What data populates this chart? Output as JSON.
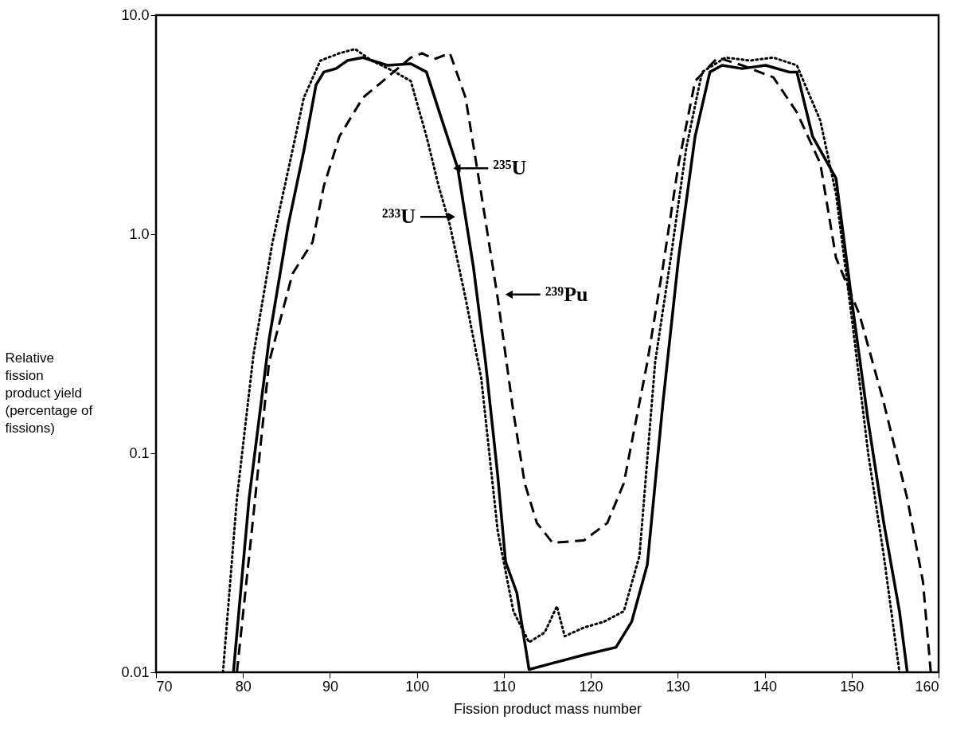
{
  "chart_data": {
    "type": "line",
    "xlabel": "Fission product mass number",
    "ylabel": "Relative fission product yield (percentage of fissions)",
    "xlim": [
      70,
      160
    ],
    "xticks": [
      70,
      80,
      90,
      100,
      110,
      120,
      130,
      140,
      150,
      160
    ],
    "ylim": [
      0.01,
      10
    ],
    "yticks": [
      {
        "value": 10,
        "label": "10.0"
      },
      {
        "value": 1,
        "label": "1.0"
      },
      0.1,
      0.01
    ],
    "log": true,
    "grid": false,
    "series": [
      {
        "color": "#000000",
        "line_style": "solid",
        "x": [
          78.9,
          80.7,
          83.0,
          85.2,
          87.0,
          88.4,
          89.3,
          90.7,
          92.0,
          93.8,
          96.6,
          99.3,
          101.1,
          102.9,
          104.7,
          106.5,
          107.9,
          109.3,
          110.2,
          111.5,
          112.9,
          115.6,
          119.2,
          122.9,
          124.7,
          126.5,
          128.3,
          130.1,
          132.0,
          133.7,
          135.1,
          137.4,
          140.1,
          142.8,
          143.7,
          145.5,
          148.2,
          150.1,
          151.9,
          153.7,
          155.5,
          156.4
        ],
        "values": [
          0.01,
          0.062,
          0.33,
          1.1,
          2.4,
          4.8,
          5.5,
          5.7,
          6.2,
          6.4,
          5.9,
          6.0,
          5.5,
          3.3,
          2.0,
          0.71,
          0.26,
          0.079,
          0.032,
          0.023,
          0.0103,
          0.011,
          0.012,
          0.013,
          0.017,
          0.031,
          0.17,
          0.78,
          2.8,
          5.5,
          5.9,
          5.7,
          5.9,
          5.5,
          5.5,
          2.8,
          1.8,
          0.47,
          0.14,
          0.048,
          0.019,
          0.01
        ]
      },
      {
        "color": "#000000",
        "line_style": "dotted",
        "x": [
          77.7,
          79.3,
          81.2,
          83.4,
          85.2,
          87.0,
          88.9,
          91.1,
          92.9,
          94.8,
          97.5,
          99.3,
          101.1,
          102.5,
          103.8,
          105.6,
          107.4,
          109.3,
          111.1,
          112.9,
          114.7,
          116.1,
          117.0,
          119.2,
          121.5,
          123.8,
          125.6,
          127.4,
          129.2,
          131.0,
          132.8,
          135.5,
          138.3,
          141.0,
          143.7,
          146.4,
          148.2,
          150.1,
          151.9,
          153.7,
          155.5
        ],
        "values": [
          0.01,
          0.062,
          0.28,
          0.92,
          1.96,
          4.2,
          6.2,
          6.7,
          7.0,
          6.2,
          5.5,
          5.0,
          2.8,
          1.66,
          1.1,
          0.51,
          0.22,
          0.044,
          0.019,
          0.0137,
          0.0152,
          0.02,
          0.0146,
          0.016,
          0.017,
          0.019,
          0.034,
          0.26,
          0.78,
          2.5,
          5.5,
          6.4,
          6.2,
          6.4,
          5.9,
          3.3,
          1.53,
          0.39,
          0.1,
          0.034,
          0.01
        ]
      },
      {
        "color": "#000000",
        "line_style": "dashed",
        "x": [
          79.3,
          81.2,
          83.0,
          85.7,
          88.0,
          89.3,
          91.1,
          93.8,
          96.6,
          99.3,
          100.6,
          102.0,
          103.8,
          105.6,
          107.4,
          109.3,
          111.1,
          112.4,
          113.8,
          115.6,
          119.2,
          121.9,
          123.8,
          126.5,
          128.3,
          130.1,
          132.0,
          134.6,
          137.4,
          141.0,
          143.7,
          146.4,
          148.2,
          150.9,
          153.7,
          156.4,
          158.2,
          159.1
        ],
        "values": [
          0.01,
          0.052,
          0.26,
          0.66,
          0.92,
          1.66,
          2.8,
          4.2,
          5.2,
          6.4,
          6.7,
          6.3,
          6.7,
          4.2,
          1.53,
          0.51,
          0.154,
          0.073,
          0.048,
          0.039,
          0.04,
          0.048,
          0.073,
          0.26,
          0.71,
          2.1,
          5.0,
          6.4,
          5.9,
          5.2,
          3.6,
          2.1,
          0.78,
          0.43,
          0.17,
          0.062,
          0.026,
          0.01
        ]
      }
    ],
    "annotations": [
      {
        "text": "²³⁵U",
        "x": 104.6,
        "y": 2.0
      },
      {
        "text": "²³³U",
        "x": 104.0,
        "y": 1.2
      },
      {
        "text": "²³⁹Pu",
        "x": 110.6,
        "y": 0.53
      }
    ]
  }
}
